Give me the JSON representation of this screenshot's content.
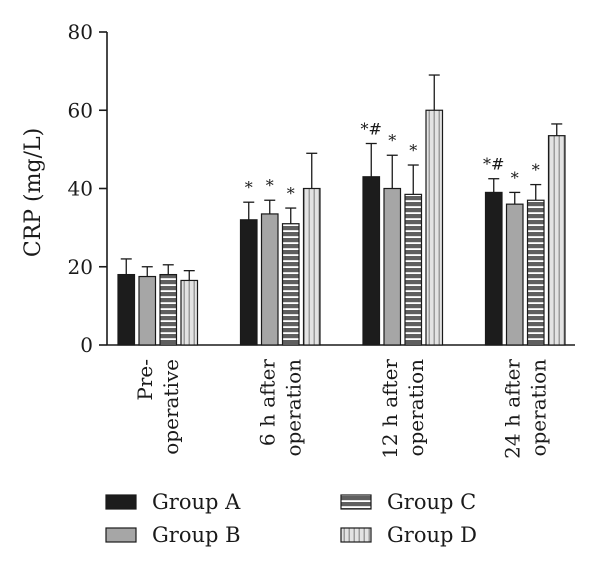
{
  "chart_data": {
    "type": "bar",
    "title": "",
    "xlabel": "",
    "ylabel": "CRP (mg/L)",
    "ylim": [
      0,
      80
    ],
    "yticks": [
      "0",
      "20",
      "40",
      "60",
      "80"
    ],
    "grid": false,
    "legend_position": "bottom",
    "categories": [
      [
        "Pre-",
        "operative"
      ],
      [
        "6 h after",
        "operation"
      ],
      [
        "12 h after",
        "operation"
      ],
      [
        "24 h after",
        "operation"
      ]
    ],
    "series": [
      {
        "name": "Group A",
        "pattern": "solid",
        "color": "#1c1c1c",
        "values": [
          18,
          32,
          43,
          39
        ],
        "errors": [
          4,
          4.5,
          8.5,
          3.5
        ],
        "annotations": [
          "",
          "*",
          "*#",
          "*#"
        ]
      },
      {
        "name": "Group B",
        "pattern": "solid",
        "color": "#a6a6a6",
        "values": [
          17.5,
          33.5,
          40,
          36
        ],
        "errors": [
          2.5,
          3.5,
          8.5,
          3
        ],
        "annotations": [
          "",
          "*",
          "*",
          "*"
        ]
      },
      {
        "name": "Group C",
        "pattern": "horizontal-stripes",
        "color": "#6e6e6e",
        "values": [
          18,
          31,
          38.5,
          37
        ],
        "errors": [
          2.5,
          4,
          7.5,
          4
        ],
        "annotations": [
          "",
          "*",
          "*",
          "*"
        ]
      },
      {
        "name": "Group D",
        "pattern": "vertical-stripes",
        "color": "#d9d9d9",
        "values": [
          16.5,
          40,
          60,
          53.5
        ],
        "errors": [
          2.5,
          9,
          9,
          3
        ],
        "annotations": [
          "",
          "",
          "",
          ""
        ]
      }
    ]
  }
}
